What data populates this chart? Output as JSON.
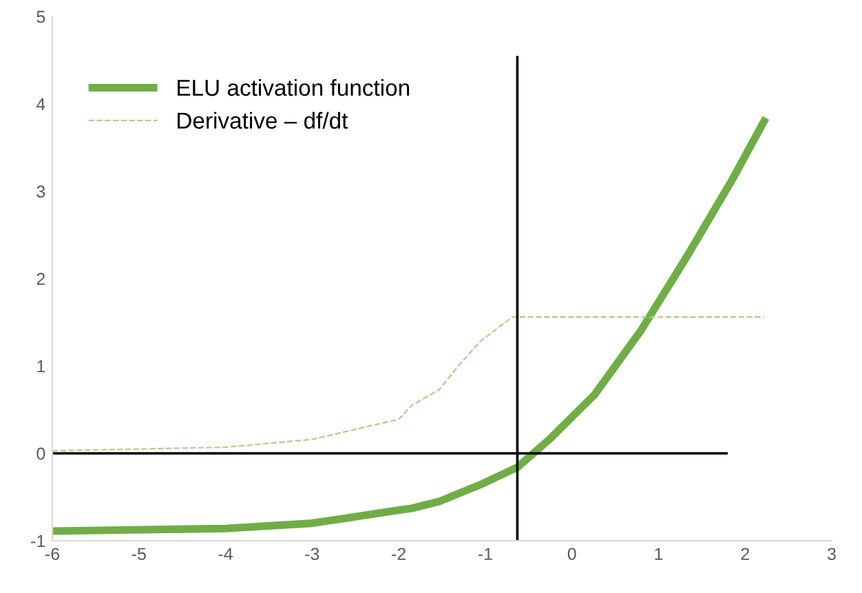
{
  "chart_data": {
    "type": "line",
    "xlim": [
      -6,
      3
    ],
    "ylim": [
      -1,
      5
    ],
    "xticks": [
      -6,
      -5,
      -4,
      -3,
      -2,
      -1,
      0,
      1,
      2,
      3
    ],
    "yticks": [
      -1,
      0,
      1,
      2,
      3,
      4,
      5
    ],
    "grid": false,
    "legend": "top left",
    "series": [
      {
        "name": "ELU activation function",
        "color": "#70ad47",
        "line_style": "solid",
        "x": [
          -6,
          -4,
          -3,
          -2,
          -1.85,
          -1.53,
          -1.06,
          -0.63,
          -0.26,
          0.26,
          0.8,
          1.32,
          1.85,
          2.24
        ],
        "values": [
          -0.89,
          -0.86,
          -0.8,
          -0.65,
          -0.63,
          -0.55,
          -0.36,
          -0.16,
          0.16,
          0.67,
          1.41,
          2.24,
          3.13,
          3.84
        ]
      },
      {
        "name": "Derivative – df/dt",
        "color": "#a9d18e",
        "line_style": "dashed",
        "x": [
          -6,
          -4,
          -3,
          -2,
          -1.85,
          -1.53,
          -1.32,
          -1.06,
          -0.69,
          2.22
        ],
        "values": [
          0.03,
          0.07,
          0.16,
          0.39,
          0.55,
          0.73,
          0.99,
          1.28,
          1.56,
          1.56
        ]
      },
      {
        "color": "#000000",
        "line_style": "solid",
        "x": [
          -6,
          1.8
        ],
        "values": [
          0,
          0
        ]
      },
      {
        "color": "#000000",
        "line_style": "solid",
        "x": [
          -0.63,
          -0.63
        ],
        "values": [
          -1,
          4.55
        ]
      }
    ]
  }
}
